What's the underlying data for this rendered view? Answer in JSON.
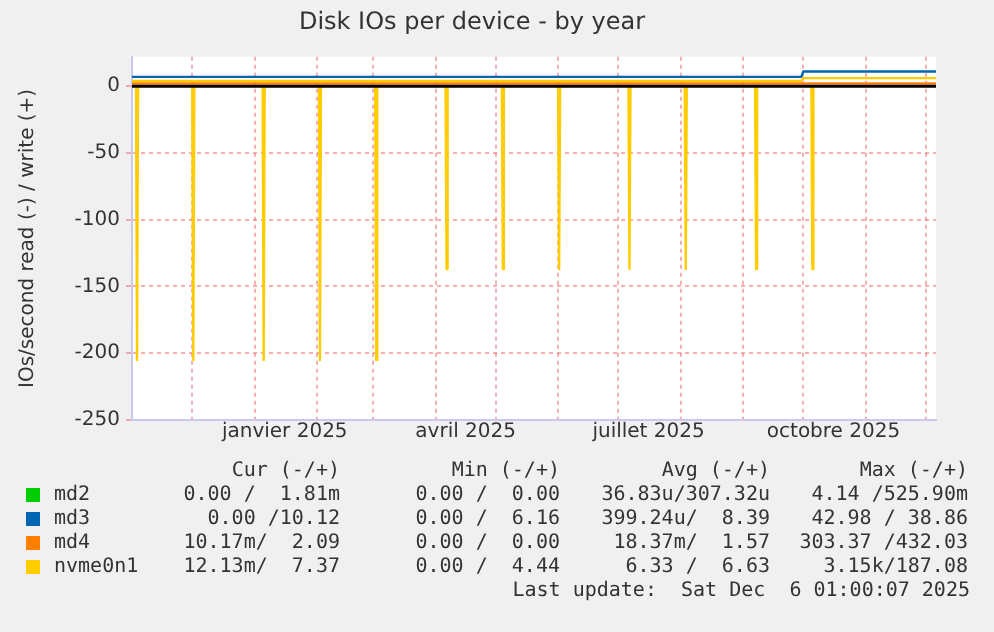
{
  "chart_data": {
    "type": "line",
    "title": "Disk IOs per device - by year",
    "ylabel": "IOs/second read (-) / write (+)",
    "xlim": [
      "2024-11-01",
      "2025-12-06"
    ],
    "xticks": [
      {
        "value": "2024-12-01",
        "label": null
      },
      {
        "value": "2025-01-01",
        "label": null
      },
      {
        "value": "2025-01-16",
        "label": "janvier 2025"
      },
      {
        "value": "2025-02-01",
        "label": null
      },
      {
        "value": "2025-03-01",
        "label": null
      },
      {
        "value": "2025-04-01",
        "label": null
      },
      {
        "value": "2025-04-16",
        "label": "avril 2025"
      },
      {
        "value": "2025-05-01",
        "label": null
      },
      {
        "value": "2025-06-01",
        "label": null
      },
      {
        "value": "2025-07-01",
        "label": null
      },
      {
        "value": "2025-07-16",
        "label": "juillet 2025"
      },
      {
        "value": "2025-08-01",
        "label": null
      },
      {
        "value": "2025-09-01",
        "label": null
      },
      {
        "value": "2025-10-01",
        "label": null
      },
      {
        "value": "2025-10-16",
        "label": "octobre 2025"
      },
      {
        "value": "2025-11-01",
        "label": null
      },
      {
        "value": "2025-12-01",
        "label": null
      }
    ],
    "ylim": [
      -250,
      22
    ],
    "yticks": [
      -250,
      -200,
      -150,
      -100,
      -50,
      0
    ],
    "grid": true,
    "legend": "bottom",
    "marker": "none",
    "line_style": "solid",
    "series": [
      {
        "name": "md2",
        "color": "#00cc00"
      },
      {
        "name": "md3",
        "color": "#0066b3",
        "x": [
          "2024-11-01",
          "2025-09-30",
          "2025-10-01",
          "2025-12-06"
        ],
        "values": [
          7,
          7,
          11,
          11
        ]
      },
      {
        "name": "md4",
        "color": "#ff8000",
        "x": [
          "2024-11-01",
          "2025-12-06"
        ],
        "values": [
          2,
          2
        ]
      },
      {
        "name": "nvme0n1",
        "color": "#ffcc00",
        "x": [
          "2024-11-01",
          "2025-09-30",
          "2025-10-01",
          "2025-12-06"
        ],
        "values": [
          4,
          4,
          6,
          6
        ]
      },
      {
        "color": "#ffcc00",
        "x": [
          "2024-11-03",
          "2024-11-03T12:00",
          "2024-11-04",
          "2024-12-01",
          "2024-12-01T12:00",
          "2024-12-02",
          "2025-01-05",
          "2025-01-05T12:00",
          "2025-01-06",
          "2025-02-02",
          "2025-02-02T12:00",
          "2025-02-03",
          "2025-03-02",
          "2025-03-02T12:00",
          "2025-03-03",
          "2025-04-06",
          "2025-04-06T12:00",
          "2025-04-07",
          "2025-05-04",
          "2025-05-04T12:00",
          "2025-05-05",
          "2025-06-01",
          "2025-06-01T12:00",
          "2025-06-02",
          "2025-07-06",
          "2025-07-06T12:00",
          "2025-07-07",
          "2025-08-03",
          "2025-08-03T12:00",
          "2025-08-04",
          "2025-09-07",
          "2025-09-07T12:00",
          "2025-09-08",
          "2025-10-05",
          "2025-10-05T12:00",
          "2025-10-06"
        ],
        "values": [
          0,
          -205,
          0,
          0,
          -205,
          0,
          0,
          -205,
          0,
          0,
          -205,
          0,
          0,
          -205,
          0,
          0,
          -137,
          0,
          0,
          -137,
          0,
          0,
          -137,
          0,
          0,
          -137,
          0,
          0,
          -137,
          0,
          0,
          -137,
          0,
          0,
          -137,
          0
        ]
      }
    ],
    "ref_lines": [
      {
        "axis": "y",
        "value": 0,
        "color": "#000000"
      }
    ],
    "annotations": [
      "Cur (-/+)",
      "Min (-/+)",
      "Avg (-/+)",
      "Max (-/+)",
      "0.00 /  1.81m",
      "0.00 /  0.00",
      "36.83u/307.32u",
      "4.14 /525.90m",
      "0.00 /10.12",
      "0.00 /  6.16",
      "399.24u/  8.39",
      "42.98 / 38.86",
      "10.17m/  2.09",
      "0.00 /  0.00",
      "18.37m/  1.57",
      "303.37 /432.03",
      "12.13m/  7.37",
      "0.00 /  4.44",
      "6.33 /  6.63",
      "3.15k/187.08",
      "Last update:  Sat Dec  6 01:00:07 2025"
    ]
  }
}
